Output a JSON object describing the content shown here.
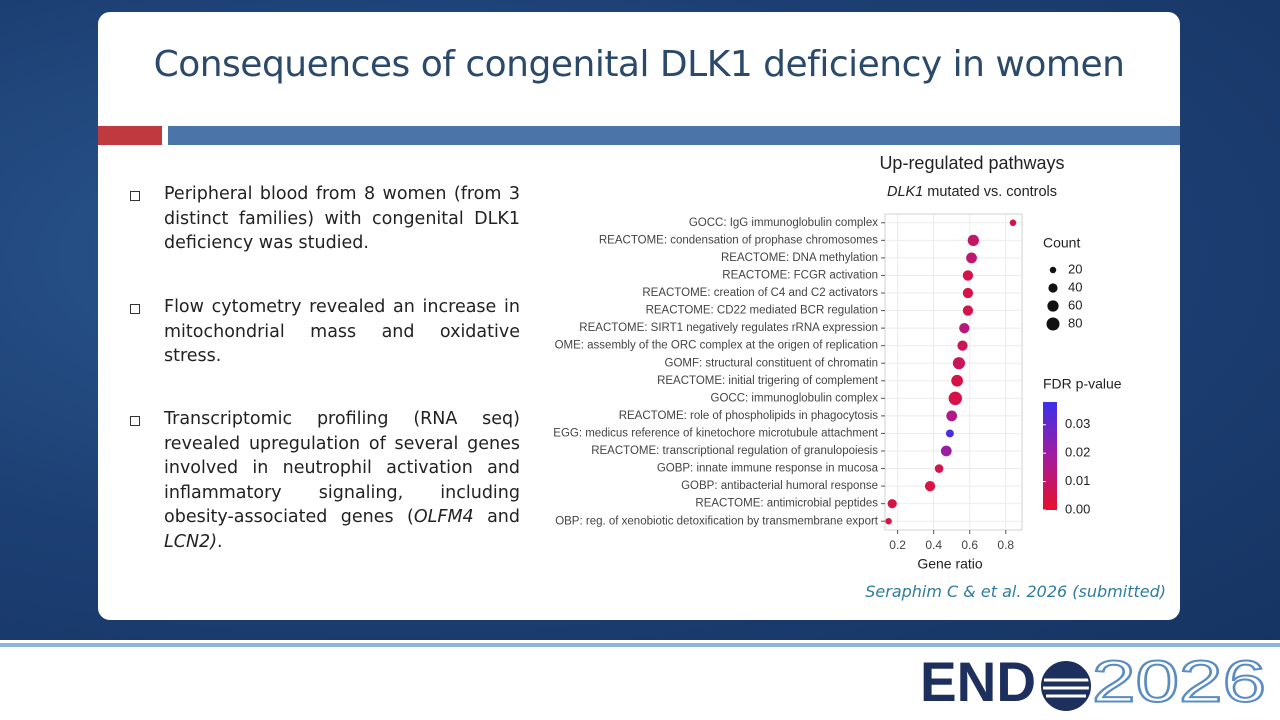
{
  "slide": {
    "title": "Consequences of congenital DLK1 deficiency in women",
    "bullets": [
      {
        "parts": [
          "Peripheral blood from 8 women (from 3 distinct families) with congenital DLK1 deficiency was studied."
        ]
      },
      {
        "parts": [
          "Flow cytometry revealed an increase in mitochondrial mass and oxidative stress."
        ]
      },
      {
        "parts": [
          "Transcriptomic profiling (RNA seq) revealed upregulation of several genes involved in neutrophil activation and inflammatory signaling, including obesity-associated genes (",
          "OLFM4",
          " and ",
          "LCN2)",
          "."
        ]
      }
    ],
    "citation": "Seraphim C  & et al. 2026 (submitted)",
    "logo": {
      "brand": "END",
      "year": "2026"
    }
  },
  "chart_data": {
    "type": "dot",
    "title": "Up-regulated pathways",
    "subtitle_gene": "DLK1",
    "subtitle": " mutated vs. controls",
    "x_label": "Gene ratio",
    "categories": [
      "GOCC: IgG immunoglobulin complex",
      "REACTOME: condensation of prophase chromosomes",
      "REACTOME: DNA methylation",
      "REACTOME: FCGR activation",
      "REACTOME: creation of C4 and C2 activators",
      "REACTOME: CD22 mediated BCR regulation",
      "REACTOME: SIRT1 negatively regulates rRNA expression",
      "OME: assembly of the ORC complex at the origen of replication",
      "GOMF: structural constituent of chromatin",
      "REACTOME: initial trigering of complement",
      "GOCC: immunoglobulin complex",
      "REACTOME: role of phospholipids in phagocytosis",
      "EGG: medicus reference of kinetochore microtubule attachment",
      "REACTOME: transcriptional regulation of granulopoiesis",
      "GOBP: innate immune response in mucosa",
      "GOBP: antibacterial humoral response",
      "REACTOME: antimicrobial peptides",
      "OBP: reg. of xenobiotic detoxification by transmembrane export"
    ],
    "values": [
      0.84,
      0.62,
      0.61,
      0.59,
      0.59,
      0.59,
      0.57,
      0.56,
      0.54,
      0.53,
      0.52,
      0.5,
      0.49,
      0.47,
      0.43,
      0.38,
      0.17,
      0.15
    ],
    "sizes": [
      20,
      60,
      55,
      50,
      50,
      50,
      50,
      50,
      70,
      65,
      85,
      55,
      30,
      55,
      35,
      50,
      40,
      20
    ],
    "fdr": [
      0.005,
      0.01,
      0.012,
      0.005,
      0.005,
      0.006,
      0.013,
      0.008,
      0.008,
      0.005,
      0.005,
      0.015,
      0.035,
      0.02,
      0.006,
      0.004,
      0.005,
      0.004
    ],
    "xlim": [
      0.13,
      0.89
    ],
    "xticks": [
      0.2,
      0.4,
      0.6,
      0.8
    ],
    "grid": true,
    "size_legend_title": "Count",
    "size_legend_values": [
      20,
      40,
      60,
      80
    ],
    "color_legend_title": "FDR p-value",
    "color_range": [
      0,
      0.038
    ],
    "color_scale": [
      "#e8102a",
      "#a21c9e",
      "#3b30ea"
    ],
    "color_ticks": [
      {
        "value": 0,
        "label": "0.00"
      },
      {
        "value": 0.01,
        "label": "0.01"
      },
      {
        "value": 0.02,
        "label": "0.02"
      },
      {
        "value": 0.03,
        "label": "0.03"
      }
    ]
  }
}
